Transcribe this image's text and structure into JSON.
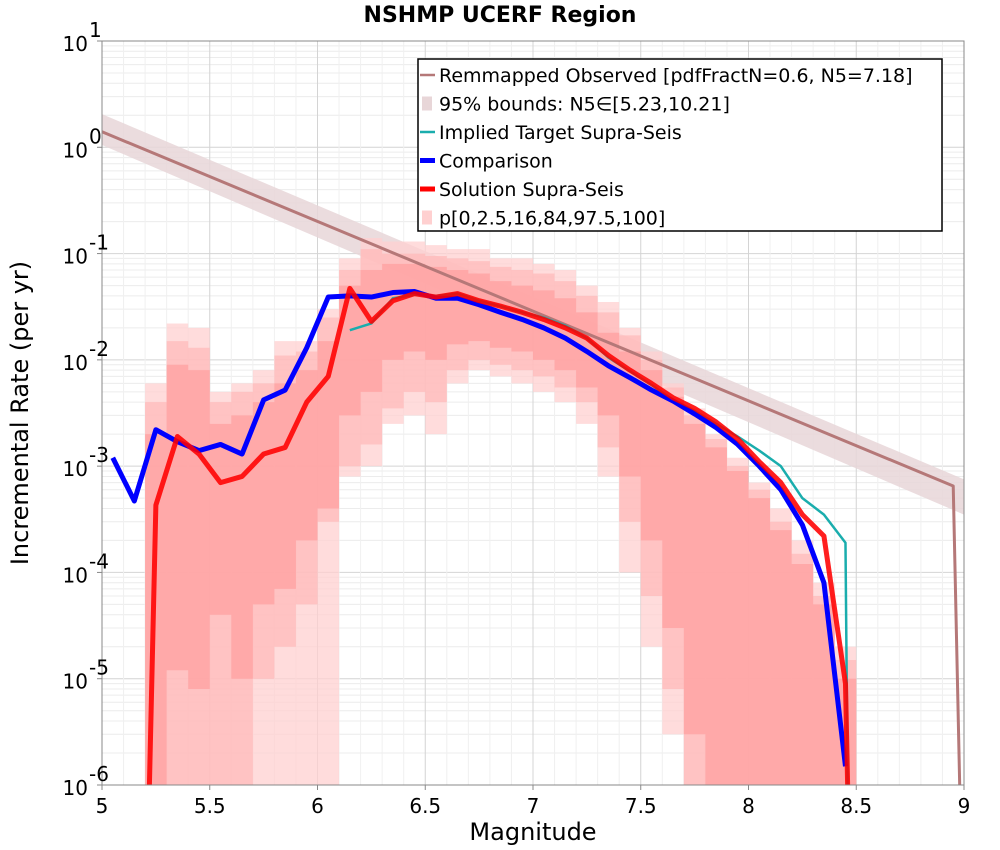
{
  "chart_data": {
    "type": "line",
    "title": "NSHMP UCERF Region",
    "xlabel": "Magnitude",
    "ylabel": "Incremental Rate (per yr)",
    "xlim": [
      5,
      9
    ],
    "ylim": [
      1e-06,
      10
    ],
    "yscale": "log",
    "grid": true,
    "legend_position": "top-right",
    "x_ticks": [
      "5",
      "5.5",
      "6",
      "6.5",
      "7",
      "7.5",
      "8",
      "8.5",
      "9"
    ],
    "y_ticks": [
      {
        "base": "10",
        "exp": "-6"
      },
      {
        "base": "10",
        "exp": "-5"
      },
      {
        "base": "10",
        "exp": "-4"
      },
      {
        "base": "10",
        "exp": "-3"
      },
      {
        "base": "10",
        "exp": "-2"
      },
      {
        "base": "10",
        "exp": "-1"
      },
      {
        "base": "10",
        "exp": "0"
      },
      {
        "base": "10",
        "exp": "1"
      }
    ],
    "legend": [
      {
        "label": "Remmapped Observed [pdfFractN=0.6, N5=7.18]",
        "color": "#b57878",
        "kind": "line"
      },
      {
        "label": "95% bounds: N5∈[5.23,10.21]",
        "color": "#e8d6d8",
        "kind": "band"
      },
      {
        "label": "Implied Target Supra-Seis",
        "color": "#1aadad",
        "kind": "line"
      },
      {
        "label": "Comparison",
        "color": "#0000ff",
        "kind": "thick-line"
      },
      {
        "label": "Solution Supra-Seis",
        "color": "#ff0000",
        "kind": "thick-line"
      },
      {
        "label": "p[0,2.5,16,84,97.5,100]",
        "color": "#ffd0d0",
        "kind": "band"
      }
    ],
    "bands": {
      "x": [
        5.25,
        5.35,
        5.45,
        5.55,
        5.65,
        5.75,
        5.85,
        5.95,
        6.05,
        6.15,
        6.25,
        6.35,
        6.45,
        6.55,
        6.65,
        6.75,
        6.85,
        6.95,
        7.05,
        7.15,
        7.25,
        7.35,
        7.45,
        7.55,
        7.65,
        7.75,
        7.85,
        7.95,
        8.05,
        8.15,
        8.25,
        8.35,
        8.45
      ],
      "p0": [
        1e-06,
        1e-06,
        1e-06,
        1e-06,
        1e-06,
        1e-06,
        1e-06,
        1e-06,
        1e-06,
        0.0008,
        0.001,
        0.0025,
        0.003,
        0.002,
        0.006,
        0.008,
        0.007,
        0.006,
        0.005,
        0.004,
        0.0025,
        0.0008,
        0.0001,
        2e-05,
        3e-06,
        1e-06,
        1e-06,
        1e-06,
        1e-06,
        1e-06,
        1e-06,
        1e-06,
        1e-06
      ],
      "p100": [
        0.006,
        0.022,
        0.02,
        0.005,
        0.006,
        0.008,
        0.015,
        0.015,
        0.03,
        0.09,
        0.14,
        0.13,
        0.13,
        0.12,
        0.11,
        0.11,
        0.09,
        0.09,
        0.08,
        0.07,
        0.05,
        0.035,
        0.02,
        0.012,
        0.006,
        0.0035,
        0.002,
        0.0012,
        0.0007,
        0.0004,
        0.0002,
        8e-05,
        2e-05
      ],
      "p2_5": [
        1e-06,
        1e-06,
        1e-06,
        1e-06,
        1e-06,
        1e-05,
        2e-05,
        5e-05,
        0.0003,
        0.001,
        0.0016,
        0.0035,
        0.005,
        0.004,
        0.008,
        0.01,
        0.009,
        0.008,
        0.007,
        0.0055,
        0.004,
        0.0015,
        0.0003,
        6e-05,
        8e-06,
        1e-06,
        1e-06,
        1e-06,
        1e-06,
        1e-06,
        1e-06,
        1e-06,
        1e-06
      ],
      "p97_5": [
        0.004,
        0.015,
        0.013,
        0.004,
        0.005,
        0.006,
        0.011,
        0.012,
        0.025,
        0.07,
        0.11,
        0.1,
        0.1,
        0.095,
        0.09,
        0.085,
        0.075,
        0.07,
        0.065,
        0.055,
        0.04,
        0.028,
        0.017,
        0.01,
        0.0055,
        0.003,
        0.0018,
        0.001,
        0.0006,
        0.0003,
        0.00015,
        6e-05,
        1.5e-05
      ],
      "p16": [
        1e-06,
        1.2e-05,
        8e-06,
        4e-05,
        1e-05,
        5e-05,
        7e-05,
        0.0002,
        0.0004,
        0.003,
        0.005,
        0.01,
        0.012,
        0.01,
        0.014,
        0.015,
        0.013,
        0.012,
        0.01,
        0.008,
        0.0055,
        0.003,
        0.0008,
        0.0002,
        3e-05,
        3e-06,
        1e-06,
        1e-06,
        1e-06,
        1e-06,
        1e-06,
        1e-06,
        1e-06
      ],
      "p84": [
        0.002,
        0.009,
        0.008,
        0.0025,
        0.003,
        0.004,
        0.006,
        0.008,
        0.015,
        0.05,
        0.07,
        0.08,
        0.08,
        0.075,
        0.07,
        0.065,
        0.055,
        0.05,
        0.045,
        0.038,
        0.028,
        0.018,
        0.012,
        0.008,
        0.0045,
        0.0025,
        0.0015,
        0.0009,
        0.0005,
        0.00025,
        0.00012,
        5e-05,
        1e-05
      ]
    },
    "series": [
      {
        "name": "95% bounds: N5∈[5.23,10.21]",
        "x": [
          5,
          9
        ],
        "lower": [
          1.05,
          0.00035
        ],
        "upper": [
          2.05,
          0.00075
        ]
      },
      {
        "name": "Remmapped Observed [pdfFractN=0.6, N5=7.18]",
        "x": [
          5,
          8.95,
          8.98
        ],
        "y": [
          1.4,
          0.00065,
          1e-06
        ]
      },
      {
        "name": "Implied Target Supra-Seis",
        "x": [
          6.15,
          6.25,
          6.35,
          6.45,
          6.55,
          6.65,
          6.75,
          6.85,
          6.95,
          7.05,
          7.15,
          7.25,
          7.35,
          7.45,
          7.55,
          7.65,
          7.75,
          7.85,
          7.95,
          8.05,
          8.15,
          8.25,
          8.35,
          8.45,
          8.46
        ],
        "y": [
          0.019,
          0.022,
          0.038,
          0.041,
          0.04,
          0.042,
          0.036,
          0.032,
          0.028,
          0.025,
          0.021,
          0.016,
          0.0105,
          0.0078,
          0.0058,
          0.0042,
          0.0033,
          0.0025,
          0.0019,
          0.0014,
          0.001,
          0.0005,
          0.00035,
          0.00019,
          1e-06
        ]
      },
      {
        "name": "Comparison",
        "x": [
          5.05,
          5.15,
          5.25,
          5.35,
          5.45,
          5.55,
          5.65,
          5.75,
          5.85,
          5.95,
          6.05,
          6.15,
          6.25,
          6.35,
          6.45,
          6.55,
          6.65,
          6.75,
          6.85,
          6.95,
          7.05,
          7.15,
          7.25,
          7.35,
          7.45,
          7.55,
          7.65,
          7.75,
          7.85,
          7.95,
          8.05,
          8.15,
          8.25,
          8.35,
          8.45
        ],
        "y": [
          0.0012,
          0.00047,
          0.0022,
          0.0017,
          0.0014,
          0.0016,
          0.0013,
          0.0042,
          0.0052,
          0.013,
          0.039,
          0.04,
          0.039,
          0.043,
          0.044,
          0.038,
          0.038,
          0.033,
          0.028,
          0.024,
          0.02,
          0.016,
          0.012,
          0.0088,
          0.0068,
          0.0052,
          0.0041,
          0.0031,
          0.0023,
          0.0016,
          0.001,
          0.0006,
          0.00028,
          8e-05,
          1.5e-06
        ]
      },
      {
        "name": "Solution Supra-Seis",
        "x": [
          5.22,
          5.25,
          5.35,
          5.45,
          5.55,
          5.65,
          5.75,
          5.85,
          5.95,
          6.05,
          6.15,
          6.25,
          6.35,
          6.45,
          6.55,
          6.65,
          6.75,
          6.85,
          6.95,
          7.05,
          7.15,
          7.25,
          7.35,
          7.45,
          7.55,
          7.65,
          7.75,
          7.85,
          7.95,
          8.05,
          8.15,
          8.25,
          8.35,
          8.45,
          8.46
        ],
        "y": [
          1e-06,
          0.00043,
          0.0019,
          0.0013,
          0.0007,
          0.0008,
          0.0013,
          0.0015,
          0.004,
          0.007,
          0.047,
          0.023,
          0.036,
          0.042,
          0.039,
          0.042,
          0.036,
          0.032,
          0.028,
          0.024,
          0.02,
          0.016,
          0.011,
          0.008,
          0.006,
          0.0044,
          0.0035,
          0.0026,
          0.0018,
          0.0011,
          0.0007,
          0.00035,
          0.00022,
          9e-06,
          1e-06
        ]
      }
    ]
  }
}
